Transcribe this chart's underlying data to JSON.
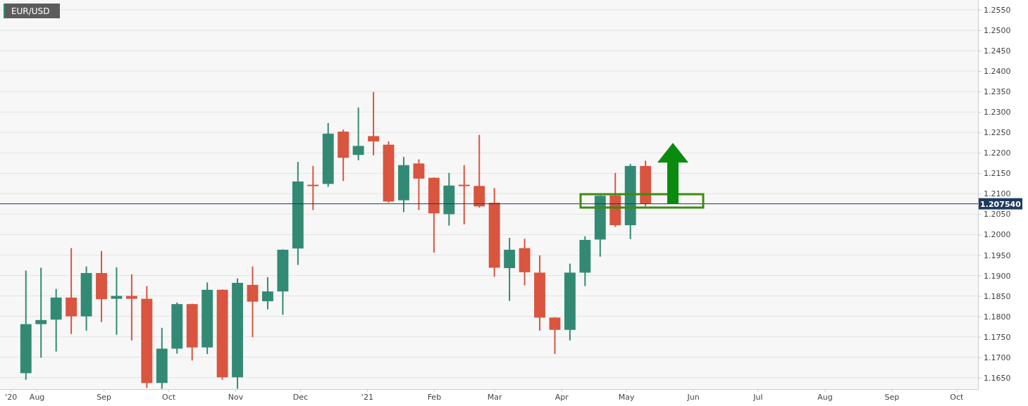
{
  "chart_data": {
    "type": "candlestick",
    "title": "EUR/USD",
    "x": [
      "2020-07-27",
      "2020-08-03",
      "2020-08-10",
      "2020-08-17",
      "2020-08-24",
      "2020-08-31",
      "2020-09-07",
      "2020-09-14",
      "2020-09-21",
      "2020-09-28",
      "2020-10-05",
      "2020-10-12",
      "2020-10-19",
      "2020-10-26",
      "2020-11-02",
      "2020-11-09",
      "2020-11-16",
      "2020-11-23",
      "2020-11-30",
      "2020-12-07",
      "2020-12-14",
      "2020-12-21",
      "2020-12-28",
      "2021-01-04",
      "2021-01-11",
      "2021-01-18",
      "2021-01-25",
      "2021-02-01",
      "2021-02-08",
      "2021-02-15",
      "2021-02-22",
      "2021-03-01",
      "2021-03-08",
      "2021-03-15",
      "2021-03-22",
      "2021-03-29",
      "2021-04-05",
      "2021-04-12",
      "2021-04-19",
      "2021-04-26",
      "2021-05-03",
      "2021-05-10"
    ],
    "ohlc": [
      [
        1.1661,
        1.1912,
        1.1645,
        1.1781
      ],
      [
        1.1781,
        1.1919,
        1.1699,
        1.1791
      ],
      [
        1.1792,
        1.1867,
        1.1714,
        1.1846
      ],
      [
        1.1846,
        1.1967,
        1.1757,
        1.18
      ],
      [
        1.18,
        1.1922,
        1.1765,
        1.1906
      ],
      [
        1.1906,
        1.196,
        1.1786,
        1.1842
      ],
      [
        1.1843,
        1.192,
        1.1755,
        1.185
      ],
      [
        1.185,
        1.1903,
        1.1741,
        1.1843
      ],
      [
        1.1843,
        1.1874,
        1.1625,
        1.1637
      ],
      [
        1.1637,
        1.1772,
        1.1623,
        1.1721
      ],
      [
        1.1721,
        1.1834,
        1.1709,
        1.183
      ],
      [
        1.183,
        1.1831,
        1.1692,
        1.1724
      ],
      [
        1.1724,
        1.1883,
        1.1708,
        1.1865
      ],
      [
        1.1865,
        1.1866,
        1.1645,
        1.1651
      ],
      [
        1.1651,
        1.1893,
        1.1623,
        1.1882
      ],
      [
        1.1877,
        1.1922,
        1.1749,
        1.1836
      ],
      [
        1.1837,
        1.1896,
        1.1817,
        1.1861
      ],
      [
        1.1861,
        1.1964,
        1.1804,
        1.1963
      ],
      [
        1.1966,
        1.2178,
        1.1926,
        1.213
      ],
      [
        1.2122,
        1.2168,
        1.206,
        1.212
      ],
      [
        1.2124,
        1.2273,
        1.2117,
        1.2247
      ],
      [
        1.2252,
        1.2257,
        1.2131,
        1.2188
      ],
      [
        1.2195,
        1.2311,
        1.2182,
        1.2217
      ],
      [
        1.2241,
        1.2349,
        1.2194,
        1.2228
      ],
      [
        1.222,
        1.2228,
        1.2078,
        1.2081
      ],
      [
        1.2084,
        1.219,
        1.2055,
        1.217
      ],
      [
        1.2174,
        1.2184,
        1.206,
        1.2137
      ],
      [
        1.2139,
        1.214,
        1.1956,
        1.2052
      ],
      [
        1.205,
        1.2151,
        1.2022,
        1.212
      ],
      [
        1.2122,
        1.217,
        1.2025,
        1.2119
      ],
      [
        1.2119,
        1.2244,
        1.2066,
        1.2069
      ],
      [
        1.2078,
        1.2114,
        1.1897,
        1.1919
      ],
      [
        1.1918,
        1.1992,
        1.1838,
        1.1963
      ],
      [
        1.1967,
        1.199,
        1.1876,
        1.1908
      ],
      [
        1.1907,
        1.1949,
        1.1765,
        1.1797
      ],
      [
        1.1797,
        1.1798,
        1.1708,
        1.1767
      ],
      [
        1.1767,
        1.1929,
        1.1741,
        1.1907
      ],
      [
        1.1907,
        1.1996,
        1.1874,
        1.1987
      ],
      [
        1.1988,
        1.2096,
        1.1946,
        1.2095
      ],
      [
        1.2096,
        1.2151,
        1.2019,
        1.2023
      ],
      [
        1.2023,
        1.2173,
        1.1989,
        1.2168
      ],
      [
        1.2168,
        1.2181,
        1.2069,
        1.2075
      ]
    ],
    "colors": [
      "#338a74",
      "#338a74",
      "#338a74",
      "#d9553f",
      "#338a74",
      "#d9553f",
      "#338a74",
      "#d9553f",
      "#d9553f",
      "#338a74",
      "#338a74",
      "#d9553f",
      "#338a74",
      "#d9553f",
      "#338a74",
      "#d9553f",
      "#338a74",
      "#338a74",
      "#338a74",
      "#d9553f",
      "#338a74",
      "#d9553f",
      "#338a74",
      "#d9553f",
      "#d9553f",
      "#338a74",
      "#d9553f",
      "#d9553f",
      "#338a74",
      "#d9553f",
      "#d9553f",
      "#d9553f",
      "#338a74",
      "#d9553f",
      "#d9553f",
      "#d9553f",
      "#338a74",
      "#338a74",
      "#338a74",
      "#d9553f",
      "#338a74",
      "#d9553f"
    ],
    "xlim": [
      "2020-07-15",
      "2021-10-11"
    ],
    "ylim": [
      1.1622,
      1.2574
    ],
    "xticks": [
      {
        "value": "2020-07-20",
        "label": "'20"
      },
      {
        "value": "2020-08-01",
        "label": "Aug"
      },
      {
        "value": "2020-09-01",
        "label": "Sep"
      },
      {
        "value": "2020-10-01",
        "label": "Oct"
      },
      {
        "value": "2020-11-01",
        "label": "Nov"
      },
      {
        "value": "2020-12-01",
        "label": "Dec"
      },
      {
        "value": "2021-01-01",
        "label": "'21"
      },
      {
        "value": "2021-02-01",
        "label": "Feb"
      },
      {
        "value": "2021-03-01",
        "label": "Mar"
      },
      {
        "value": "2021-04-01",
        "label": "Apr"
      },
      {
        "value": "2021-05-01",
        "label": "May"
      },
      {
        "value": "2021-06-01",
        "label": "Jun"
      },
      {
        "value": "2021-07-01",
        "label": "Jul"
      },
      {
        "value": "2021-08-01",
        "label": "Aug"
      },
      {
        "value": "2021-09-01",
        "label": "Sep"
      },
      {
        "value": "2021-10-01",
        "label": "Oct"
      }
    ],
    "yticks": [
      {
        "value": 1.165,
        "label": "1.1650"
      },
      {
        "value": 1.17,
        "label": "1.1700"
      },
      {
        "value": 1.175,
        "label": "1.1750"
      },
      {
        "value": 1.18,
        "label": "1.1800"
      },
      {
        "value": 1.185,
        "label": "1.1850"
      },
      {
        "value": 1.19,
        "label": "1.1900"
      },
      {
        "value": 1.195,
        "label": "1.1950"
      },
      {
        "value": 1.2,
        "label": "1.2000"
      },
      {
        "value": 1.205,
        "label": "1.2050"
      },
      {
        "value": 1.21,
        "label": "1.2100"
      },
      {
        "value": 1.215,
        "label": "1.2150"
      },
      {
        "value": 1.22,
        "label": "1.2200"
      },
      {
        "value": 1.225,
        "label": "1.2250"
      },
      {
        "value": 1.23,
        "label": "1.2300"
      },
      {
        "value": 1.235,
        "label": "1.2350"
      },
      {
        "value": 1.24,
        "label": "1.2400"
      },
      {
        "value": 1.245,
        "label": "1.2450"
      },
      {
        "value": 1.25,
        "label": "1.2500"
      },
      {
        "value": 1.255,
        "label": "1.2550"
      }
    ],
    "grid": "y",
    "ref_lines": [
      {
        "axis": "y",
        "value": 1.20754,
        "label": "1.207540",
        "color": "#1f3a5f"
      }
    ]
  }
}
